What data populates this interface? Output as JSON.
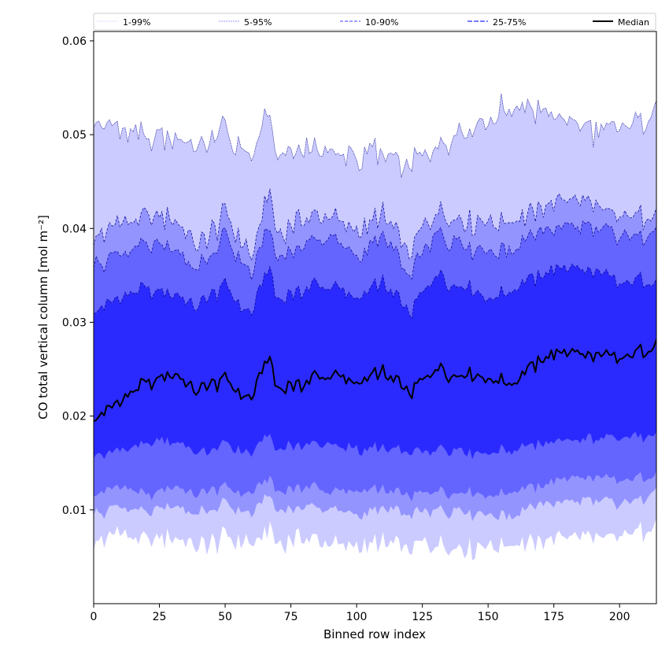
{
  "chart_data": {
    "type": "area",
    "xlabel": "Binned row index",
    "ylabel": "CO total vertical column [mol m⁻²]",
    "xlim": [
      0,
      214
    ],
    "ylim": [
      0.0,
      0.061
    ],
    "xticks": [
      0,
      25,
      50,
      75,
      100,
      125,
      150,
      175,
      200
    ],
    "yticks": [
      0.01,
      0.02,
      0.03,
      0.04,
      0.05,
      0.06
    ],
    "ytick_labels": [
      "0.01",
      "0.02",
      "0.03",
      "0.04",
      "0.05",
      "0.06"
    ],
    "legend": {
      "placement": "top, spanning full width",
      "entries": [
        "1-99%",
        "5-95%",
        "10-90%",
        "25-75%",
        "Median"
      ]
    },
    "colors": {
      "band_1_99": "#cbcbff",
      "band_5_95": "#9494ff",
      "band_10_90": "#6464ff",
      "band_25_75": "#2a2aff",
      "median": "#000000",
      "band_edge": "#00008b"
    },
    "x_anchor": [
      0,
      10,
      20,
      30,
      40,
      50,
      60,
      66,
      70,
      80,
      90,
      100,
      110,
      120,
      130,
      140,
      150,
      160,
      170,
      180,
      190,
      200,
      210,
      214
    ],
    "series": [
      {
        "name": "Median",
        "values": [
          0.0195,
          0.0215,
          0.0235,
          0.0245,
          0.0225,
          0.024,
          0.0215,
          0.0265,
          0.023,
          0.0235,
          0.0245,
          0.0235,
          0.0245,
          0.0225,
          0.025,
          0.0245,
          0.024,
          0.0235,
          0.026,
          0.027,
          0.0265,
          0.026,
          0.027,
          0.028
        ]
      },
      {
        "name": "25-75% upper",
        "values": [
          0.031,
          0.0325,
          0.0335,
          0.033,
          0.0315,
          0.034,
          0.0305,
          0.036,
          0.0325,
          0.0335,
          0.034,
          0.0325,
          0.034,
          0.031,
          0.035,
          0.034,
          0.0325,
          0.0335,
          0.035,
          0.036,
          0.0355,
          0.034,
          0.0345,
          0.0345
        ]
      },
      {
        "name": "25-75% lower",
        "values": [
          0.0155,
          0.0165,
          0.017,
          0.0175,
          0.016,
          0.017,
          0.016,
          0.018,
          0.0165,
          0.017,
          0.017,
          0.0165,
          0.0165,
          0.016,
          0.0165,
          0.0165,
          0.016,
          0.0165,
          0.017,
          0.0175,
          0.0175,
          0.0175,
          0.018,
          0.018
        ]
      },
      {
        "name": "10-90% upper",
        "values": [
          0.036,
          0.0375,
          0.038,
          0.038,
          0.0355,
          0.039,
          0.035,
          0.04,
          0.037,
          0.0385,
          0.039,
          0.037,
          0.039,
          0.035,
          0.0395,
          0.0385,
          0.0375,
          0.038,
          0.0395,
          0.0405,
          0.04,
          0.039,
          0.0395,
          0.0395
        ]
      },
      {
        "name": "10-90% lower",
        "values": [
          0.0115,
          0.0125,
          0.0115,
          0.0125,
          0.0115,
          0.0125,
          0.0115,
          0.0135,
          0.012,
          0.0125,
          0.012,
          0.012,
          0.012,
          0.0115,
          0.012,
          0.012,
          0.0115,
          0.012,
          0.0125,
          0.0135,
          0.0135,
          0.013,
          0.0135,
          0.014
        ]
      },
      {
        "name": "5-95% upper",
        "values": [
          0.039,
          0.0405,
          0.041,
          0.041,
          0.038,
          0.0415,
          0.037,
          0.0435,
          0.0395,
          0.041,
          0.0415,
          0.0395,
          0.0415,
          0.0375,
          0.042,
          0.041,
          0.0405,
          0.041,
          0.042,
          0.0435,
          0.0425,
          0.041,
          0.0415,
          0.0415
        ]
      },
      {
        "name": "5-95% lower",
        "values": [
          0.0095,
          0.0105,
          0.0095,
          0.0105,
          0.0095,
          0.0105,
          0.0095,
          0.0115,
          0.01,
          0.0105,
          0.01,
          0.0095,
          0.01,
          0.0095,
          0.01,
          0.01,
          0.0095,
          0.0095,
          0.0105,
          0.011,
          0.011,
          0.0105,
          0.0115,
          0.012
        ]
      },
      {
        "name": "1-99% upper",
        "values": [
          0.0515,
          0.0505,
          0.0495,
          0.05,
          0.0485,
          0.0505,
          0.047,
          0.0525,
          0.0475,
          0.0485,
          0.048,
          0.0475,
          0.048,
          0.0465,
          0.049,
          0.0505,
          0.0515,
          0.053,
          0.0525,
          0.0515,
          0.0505,
          0.0505,
          0.052,
          0.0525
        ]
      },
      {
        "name": "1-99% lower",
        "values": [
          0.0065,
          0.0075,
          0.0065,
          0.007,
          0.006,
          0.007,
          0.0065,
          0.0075,
          0.0065,
          0.007,
          0.0065,
          0.006,
          0.0065,
          0.006,
          0.0065,
          0.006,
          0.006,
          0.0065,
          0.0065,
          0.0075,
          0.007,
          0.007,
          0.008,
          0.0085
        ]
      }
    ]
  }
}
